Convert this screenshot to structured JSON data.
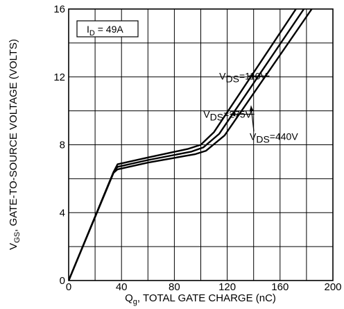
{
  "chart_data": {
    "type": "line",
    "xlabel": {
      "main": "Q",
      "sub": "g",
      "rest": ", TOTAL GATE CHARGE (nC)"
    },
    "ylabel": {
      "main": "V",
      "sub": "GS",
      "rest": ", GATE-TO-SOURCE VOLTAGE (VOLTS)"
    },
    "xlim": [
      0,
      200
    ],
    "ylim": [
      0,
      16
    ],
    "xticks": [
      0,
      40,
      80,
      120,
      160,
      200
    ],
    "yticks": [
      0,
      4,
      8,
      12,
      16
    ],
    "xgrid_step": 20,
    "ygrid_step": 2,
    "grid": true,
    "legend_box": {
      "main": "I",
      "sub": "D",
      "rest": " = 49A"
    },
    "series": [
      {
        "name": "V_DS=110V",
        "label_main": "V",
        "label_sub": "DS",
        "label_rest": "=110V",
        "x": [
          0,
          34,
          37,
          60,
          90,
          100,
          110,
          172
        ],
        "y": [
          0,
          6.4,
          6.85,
          7.25,
          7.75,
          8.0,
          8.75,
          16
        ]
      },
      {
        "name": "V_DS=275V",
        "label_main": "V",
        "label_sub": "DS",
        "label_rest": "=275V",
        "x": [
          0,
          34,
          37,
          60,
          93,
          102,
          114,
          178
        ],
        "y": [
          0,
          6.4,
          6.7,
          7.1,
          7.6,
          7.85,
          8.65,
          16
        ]
      },
      {
        "name": "V_DS=440V",
        "label_main": "V",
        "label_sub": "DS",
        "label_rest": "=440V",
        "x": [
          0,
          34,
          37,
          60,
          96,
          104,
          118,
          184
        ],
        "y": [
          0,
          6.35,
          6.55,
          6.95,
          7.45,
          7.65,
          8.55,
          16
        ]
      }
    ],
    "annotations": [
      {
        "series": 0,
        "text_x": 114,
        "text_y": 12.05,
        "arrow_to": [
          136,
          12.05
        ]
      },
      {
        "series": 1,
        "text_x": 102,
        "text_y": 9.8,
        "arrow_to": [
          122,
          9.8
        ]
      },
      {
        "series": 2,
        "text_x": 137,
        "text_y": 8.5,
        "arrow_to": [
          138,
          10.3
        ]
      }
    ]
  }
}
